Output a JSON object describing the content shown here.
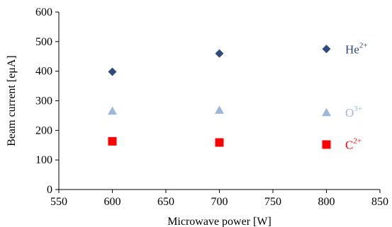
{
  "chart_data": {
    "type": "scatter",
    "xlabel": "Microwave power [W]",
    "ylabel": "Beam current [eμA]",
    "xlim": [
      550,
      850
    ],
    "ylim": [
      0,
      600
    ],
    "x_ticks": [
      "550",
      "600",
      "650",
      "700",
      "750",
      "800",
      "850"
    ],
    "y_ticks": [
      "0",
      "100",
      "200",
      "300",
      "400",
      "500",
      "600"
    ],
    "grid": false,
    "legend_placement": "right",
    "series": [
      {
        "name": "He",
        "charge": "2+",
        "marker": "diamond",
        "color": "#2e4b7f",
        "x": [
          600,
          700,
          800
        ],
        "y": [
          398,
          460,
          475
        ]
      },
      {
        "name": "O",
        "charge": "3+",
        "marker": "triangle",
        "color": "#9db7db",
        "x": [
          600,
          700,
          800
        ],
        "y": [
          265,
          268,
          260
        ]
      },
      {
        "name": "C",
        "charge": "2+",
        "marker": "square",
        "color": "#ff0000",
        "x": [
          600,
          700,
          800
        ],
        "y": [
          163,
          159,
          152
        ]
      }
    ]
  }
}
